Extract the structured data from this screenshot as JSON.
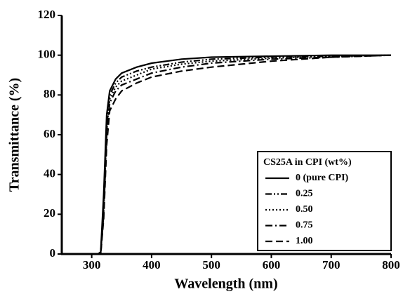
{
  "chart_data": {
    "type": "line",
    "x_label": "Wavelength (nm)",
    "y_label": "Transmittance (%)",
    "x": [
      250,
      300,
      310,
      315,
      320,
      325,
      330,
      340,
      350,
      375,
      400,
      450,
      500,
      600,
      700,
      800
    ],
    "series": [
      {
        "name": "0 (pure CPI)",
        "color": "#000000",
        "dash": "none",
        "values": [
          0,
          0,
          0,
          1,
          30,
          70,
          82,
          88,
          91,
          94,
          96,
          98,
          99,
          99.5,
          100,
          100
        ]
      },
      {
        "name": "0.25",
        "color": "#000000",
        "dash": "9 3 2 3 2 3",
        "values": [
          0,
          0,
          0,
          0.5,
          25,
          65,
          80,
          86,
          89,
          92,
          94,
          96.5,
          98,
          99,
          99.5,
          100
        ]
      },
      {
        "name": "0.50",
        "color": "#000000",
        "dash": "2 3",
        "values": [
          0,
          0,
          0,
          0.5,
          22,
          62,
          78,
          84,
          87,
          90,
          93,
          95.5,
          97,
          98.5,
          99.5,
          100
        ]
      },
      {
        "name": "0.75",
        "color": "#000000",
        "dash": "10 4 2 4",
        "values": [
          0,
          0,
          0,
          0,
          20,
          60,
          76,
          82,
          85,
          88,
          91,
          94,
          96,
          98,
          99,
          100
        ]
      },
      {
        "name": "1.00",
        "color": "#000000",
        "dash": "10 5",
        "values": [
          0,
          0,
          0,
          0,
          18,
          55,
          72,
          78,
          82,
          86,
          89,
          92,
          94,
          97,
          99,
          100
        ]
      }
    ],
    "legend_title": "CS25A in CPI (wt%)",
    "legend": "lower right",
    "xlim": [
      250,
      800
    ],
    "xticks": [
      300,
      400,
      500,
      600,
      700,
      800
    ],
    "ylim": [
      0,
      120
    ],
    "yticks": [
      0,
      20,
      40,
      60,
      80,
      100,
      120
    ]
  }
}
